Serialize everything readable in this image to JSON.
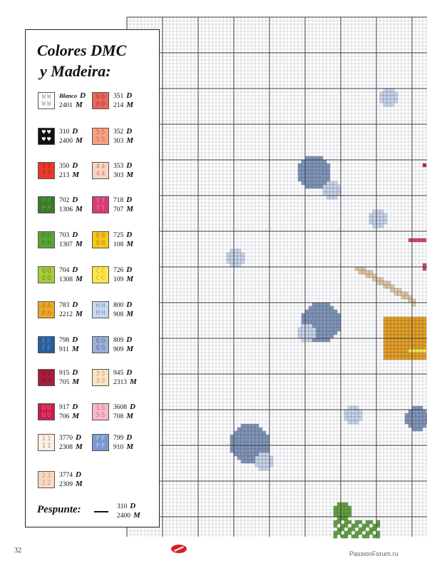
{
  "legend": {
    "title_line1": "Colores DMC",
    "title_line2": "y Madeira:",
    "rows": [
      [
        {
          "sym": "WW",
          "bg": "#ffffff",
          "fg": "#999999",
          "dmc": "Blanco",
          "madeira": "2401"
        },
        {
          "sym": "66",
          "bg": "#e8665a",
          "fg": "#b03a30",
          "dmc": "351",
          "madeira": "214"
        }
      ],
      [
        {
          "sym": "♥♥",
          "bg": "#111111",
          "fg": "#ffffff",
          "dmc": "310",
          "madeira": "2400"
        },
        {
          "sym": "55",
          "bg": "#f5a282",
          "fg": "#d06a4e",
          "dmc": "352",
          "madeira": "303"
        }
      ],
      [
        {
          "sym": "77",
          "bg": "#e83a2a",
          "fg": "#a82218",
          "dmc": "350",
          "madeira": "213"
        },
        {
          "sym": "44",
          "bg": "#fbd3c2",
          "fg": "#c9856f",
          "dmc": "353",
          "madeira": "303"
        }
      ],
      [
        {
          "sym": "PP",
          "bg": "#3d7a2a",
          "fg": "#6aa04e",
          "dmc": "702",
          "madeira": "1306"
        },
        {
          "sym": "TT",
          "bg": "#d83a78",
          "fg": "#f07aa8",
          "dmc": "718",
          "madeira": "707"
        }
      ],
      [
        {
          "sym": "RR",
          "bg": "#5ea33a",
          "fg": "#3e7f20",
          "dmc": "703",
          "madeira": "1307"
        },
        {
          "sym": "BB",
          "bg": "#f5c81a",
          "fg": "#b8901a",
          "dmc": "725",
          "madeira": "108"
        }
      ],
      [
        {
          "sym": "QQ",
          "bg": "#a6cd3a",
          "fg": "#6a8f22",
          "dmc": "704",
          "madeira": "1308"
        },
        {
          "sym": "CC",
          "bg": "#fbe64a",
          "fg": "#c9b020",
          "dmc": "726",
          "madeira": "109"
        }
      ],
      [
        {
          "sym": "AA",
          "bg": "#eea52a",
          "fg": "#b87512",
          "dmc": "783",
          "madeira": "2212"
        },
        {
          "sym": "HH",
          "bg": "#c9d8f0",
          "fg": "#7f95bd",
          "dmc": "800",
          "madeira": "908"
        }
      ],
      [
        {
          "sym": "EE",
          "bg": "#2a5d9f",
          "fg": "#5a8acb",
          "dmc": "798",
          "madeira": "911"
        },
        {
          "sym": "GG",
          "bg": "#9aaed8",
          "fg": "#60739f",
          "dmc": "809",
          "madeira": "909"
        }
      ],
      [
        {
          "sym": "VV",
          "bg": "#a81e3a",
          "fg": "#7a1226",
          "dmc": "915",
          "madeira": "705"
        },
        {
          "sym": "33",
          "bg": "#fbe3c2",
          "fg": "#c9a072",
          "dmc": "945",
          "madeira": "2313"
        }
      ],
      [
        {
          "sym": "UU",
          "bg": "#c81e4a",
          "fg": "#f06a8a",
          "dmc": "917",
          "madeira": "706"
        },
        {
          "sym": "SS",
          "bg": "#f7b8c8",
          "fg": "#c97890",
          "dmc": "3608",
          "madeira": "708"
        }
      ],
      [
        {
          "sym": "11",
          "bg": "#fdf0e2",
          "fg": "#b89a7a",
          "dmc": "3770",
          "madeira": "2308"
        },
        {
          "sym": "FF",
          "bg": "#7a98cf",
          "fg": "#c2d2ef",
          "dmc": "799",
          "madeira": "910"
        }
      ],
      [
        {
          "sym": "22",
          "bg": "#fbd9c0",
          "fg": "#d09a7a",
          "dmc": "3774",
          "madeira": "2309"
        }
      ]
    ],
    "letter_d": "D",
    "letter_m": "M",
    "pespunte_label": "Pespunte:",
    "pespunte_dmc": "310",
    "pespunte_madeira": "2400"
  },
  "footer": {
    "page_number": "32",
    "watermark": "PassionForum.ru"
  },
  "colors": {
    "grid_minor": "#a7adb8",
    "grid_major": "#3a3a3a",
    "bubble_blue": "#7f95bd",
    "bubble_light": "#c9d8f0",
    "pencil_wood": "#e6c6a4",
    "pencil_yellow": "#e8a020",
    "green_leaf": "#5ea33a",
    "pink": "#d83a78",
    "red": "#c81e4a"
  }
}
